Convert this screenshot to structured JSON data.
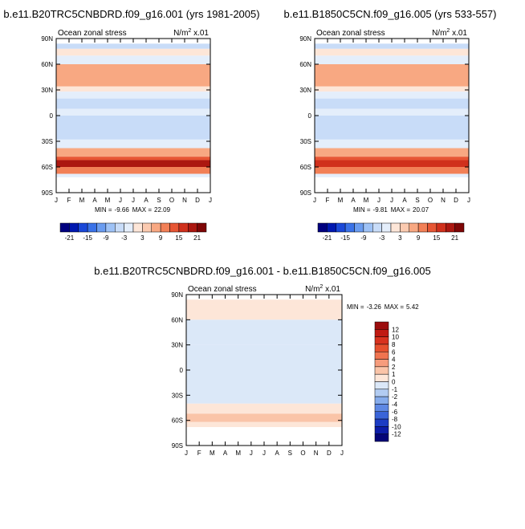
{
  "chart_data": [
    {
      "type": "heatmap",
      "title": "b.e11.B20TRC5CNBDRD.f09_g16.001 (yrs 1981-2005)",
      "subtitle_left": "Ocean zonal stress",
      "units": "N/m",
      "units_sup": "2",
      "units_suffix": " x.01",
      "x_ticks": [
        "J",
        "F",
        "M",
        "A",
        "M",
        "J",
        "J",
        "A",
        "S",
        "O",
        "N",
        "D",
        "J"
      ],
      "y_ticks": [
        "90N",
        "60N",
        "30N",
        "0",
        "30S",
        "60S",
        "90S"
      ],
      "ylim": [
        -90,
        90
      ],
      "min_label": "MIN =",
      "min_value": "-9.66",
      "max_label": "MAX =",
      "max_value": "22.09",
      "colorbar_labels": [
        "-21",
        "-15",
        "-9",
        "-3",
        "3",
        "9",
        "15",
        "21"
      ],
      "colorbar_colors": [
        "#00007f",
        "#0018b0",
        "#1a48d8",
        "#3a72e8",
        "#6a9cf0",
        "#9ec2f6",
        "#c8dcf8",
        "#e4eefb",
        "#fde6d8",
        "#fbcab0",
        "#f8a882",
        "#f28057",
        "#e75634",
        "#d0301c",
        "#ac1710",
        "#7e0606"
      ],
      "contour_levels": [
        -21,
        -18,
        -15,
        -12,
        -9,
        -6,
        -3,
        0,
        3,
        6,
        9,
        12,
        15,
        18,
        21
      ],
      "bands": [
        {
          "lat_min": 78,
          "lat_max": 84,
          "value": -5
        },
        {
          "lat_min": 70,
          "lat_max": 78,
          "value": 1
        },
        {
          "lat_min": 60,
          "lat_max": 70,
          "value": -2
        },
        {
          "lat_min": 34,
          "lat_max": 60,
          "value": 8
        },
        {
          "lat_min": 28,
          "lat_max": 34,
          "value": 1
        },
        {
          "lat_min": 20,
          "lat_max": 28,
          "value": -2
        },
        {
          "lat_min": 8,
          "lat_max": 20,
          "value": -4
        },
        {
          "lat_min": 0,
          "lat_max": 8,
          "value": -1
        },
        {
          "lat_min": -28,
          "lat_max": 0,
          "value": -6
        },
        {
          "lat_min": -38,
          "lat_max": -28,
          "value": -2
        },
        {
          "lat_min": -48,
          "lat_max": -38,
          "value": 8
        },
        {
          "lat_min": -52,
          "lat_max": -48,
          "value": 14
        },
        {
          "lat_min": -60,
          "lat_max": -52,
          "value": 18
        },
        {
          "lat_min": -68,
          "lat_max": -60,
          "value": 10
        },
        {
          "lat_min": -72,
          "lat_max": -68,
          "value": -1
        }
      ]
    },
    {
      "type": "heatmap",
      "title": "b.e11.B1850C5CN.f09_g16.005 (yrs 533-557)",
      "subtitle_left": "Ocean zonal stress",
      "units": "N/m",
      "units_sup": "2",
      "units_suffix": " x.01",
      "x_ticks": [
        "J",
        "F",
        "M",
        "A",
        "M",
        "J",
        "J",
        "A",
        "S",
        "O",
        "N",
        "D",
        "J"
      ],
      "y_ticks": [
        "90N",
        "60N",
        "30N",
        "0",
        "30S",
        "60S",
        "90S"
      ],
      "ylim": [
        -90,
        90
      ],
      "min_label": "MIN =",
      "min_value": "-9.81",
      "max_label": "MAX =",
      "max_value": "20.07",
      "colorbar_labels": [
        "-21",
        "-15",
        "-9",
        "-3",
        "3",
        "9",
        "15",
        "21"
      ],
      "colorbar_colors": [
        "#00007f",
        "#0018b0",
        "#1a48d8",
        "#3a72e8",
        "#6a9cf0",
        "#9ec2f6",
        "#c8dcf8",
        "#e4eefb",
        "#fde6d8",
        "#fbcab0",
        "#f8a882",
        "#f28057",
        "#e75634",
        "#d0301c",
        "#ac1710",
        "#7e0606"
      ],
      "contour_levels": [
        -21,
        -18,
        -15,
        -12,
        -9,
        -6,
        -3,
        0,
        3,
        6,
        9,
        12,
        15,
        18,
        21
      ],
      "bands": [
        {
          "lat_min": 78,
          "lat_max": 84,
          "value": -5
        },
        {
          "lat_min": 70,
          "lat_max": 78,
          "value": 1
        },
        {
          "lat_min": 60,
          "lat_max": 70,
          "value": -2
        },
        {
          "lat_min": 34,
          "lat_max": 60,
          "value": 8
        },
        {
          "lat_min": 28,
          "lat_max": 34,
          "value": 1
        },
        {
          "lat_min": 20,
          "lat_max": 28,
          "value": -2
        },
        {
          "lat_min": 8,
          "lat_max": 20,
          "value": -4
        },
        {
          "lat_min": 0,
          "lat_max": 8,
          "value": -1
        },
        {
          "lat_min": -28,
          "lat_max": 0,
          "value": -6
        },
        {
          "lat_min": -38,
          "lat_max": -28,
          "value": -2
        },
        {
          "lat_min": -48,
          "lat_max": -38,
          "value": 7
        },
        {
          "lat_min": -52,
          "lat_max": -48,
          "value": 12
        },
        {
          "lat_min": -60,
          "lat_max": -52,
          "value": 16
        },
        {
          "lat_min": -68,
          "lat_max": -60,
          "value": 9
        },
        {
          "lat_min": -72,
          "lat_max": -68,
          "value": -1
        }
      ]
    },
    {
      "type": "heatmap",
      "title": "b.e11.B20TRC5CNBDRD.f09_g16.001 - b.e11.B1850C5CN.f09_g16.005",
      "subtitle_left": "Ocean zonal stress",
      "units": "N/m",
      "units_sup": "2",
      "units_suffix": " x.01",
      "x_ticks": [
        "J",
        "F",
        "M",
        "A",
        "M",
        "J",
        "J",
        "A",
        "S",
        "O",
        "N",
        "D",
        "J"
      ],
      "y_ticks": [
        "90N",
        "60N",
        "30N",
        "0",
        "30S",
        "60S",
        "90S"
      ],
      "ylim": [
        -90,
        90
      ],
      "min_label": "MIN =",
      "min_value": "-3.26",
      "max_label": "MAX =",
      "max_value": "5.42",
      "colorbar_labels": [
        "12",
        "10",
        "8",
        "6",
        "4",
        "2",
        "1",
        "0",
        "-1",
        "-2",
        "-4",
        "-6",
        "-8",
        "-10",
        "-12"
      ],
      "colorbar_colors": [
        "#9c0d0d",
        "#c01a12",
        "#d8321e",
        "#e6502e",
        "#f07450",
        "#f69c7c",
        "#fac4a8",
        "#fde6d8",
        "#dbe8f8",
        "#b2ccf2",
        "#86acec",
        "#5e88e4",
        "#3a64d8",
        "#1c3cc4",
        "#0c1ca8",
        "#040478"
      ],
      "contour_levels": [
        -12,
        -10,
        -8,
        -6,
        -4,
        -2,
        -1,
        0,
        1,
        2,
        4,
        6,
        8,
        10,
        12
      ],
      "bands": [
        {
          "lat_min": 78,
          "lat_max": 84,
          "value": 0.5
        },
        {
          "lat_min": 60,
          "lat_max": 78,
          "value": 0.5
        },
        {
          "lat_min": 30,
          "lat_max": 60,
          "value": -0.5
        },
        {
          "lat_min": 0,
          "lat_max": 30,
          "value": -0.5
        },
        {
          "lat_min": -40,
          "lat_max": 0,
          "value": -0.5
        },
        {
          "lat_min": -52,
          "lat_max": -40,
          "value": 0.5
        },
        {
          "lat_min": -62,
          "lat_max": -52,
          "value": 1.5
        },
        {
          "lat_min": -68,
          "lat_max": -62,
          "value": 0.5
        }
      ]
    }
  ]
}
